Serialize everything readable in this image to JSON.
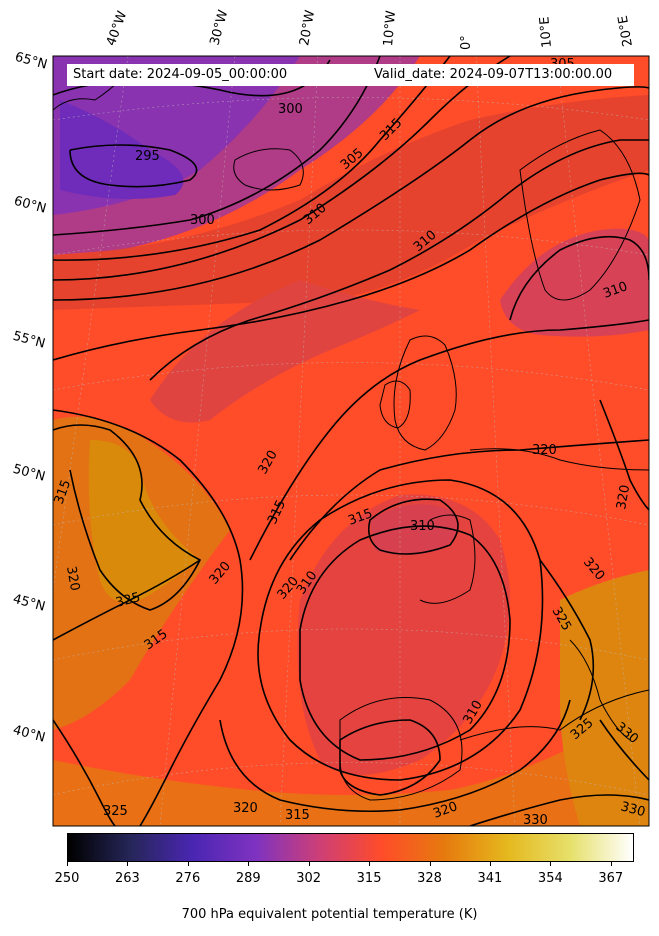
{
  "header": {
    "start_date": "Start date: 2024-09-05_00:00:00",
    "valid_date": "Valid_date: 2024-09-07T13:00:00.00"
  },
  "longitude_labels": [
    "40°W",
    "30°W",
    "20°W",
    "10°W",
    "0°",
    "10°E",
    "20°E"
  ],
  "latitude_labels": [
    "65°N",
    "60°N",
    "55°N",
    "50°N",
    "45°N",
    "40°N"
  ],
  "contour_labels": [
    "295",
    "300",
    "300",
    "305",
    "305",
    "310",
    "310",
    "310",
    "310",
    "310",
    "310",
    "315",
    "315",
    "315",
    "315",
    "315",
    "315",
    "320",
    "320",
    "320",
    "320",
    "320",
    "320",
    "320",
    "320",
    "320",
    "325",
    "325",
    "325",
    "325",
    "330",
    "330",
    "330"
  ],
  "colorbar": {
    "ticks": [
      "250",
      "263",
      "276",
      "289",
      "302",
      "315",
      "328",
      "341",
      "354",
      "367"
    ],
    "title": "700 hPa equivalent potential temperature (K)",
    "min": 250,
    "max": 372,
    "colormap": "CMRmap",
    "colors": [
      "#000000",
      "#262659",
      "#4a26b3",
      "#7f33c0",
      "#cd3f77",
      "#ff4c29",
      "#e67a0e",
      "#e5b81e",
      "#e6e06a",
      "#ffffff"
    ]
  },
  "map": {
    "variable": "theta_e_700hPa",
    "background_color": "#ff4c29",
    "contour_color": "#000000"
  }
}
